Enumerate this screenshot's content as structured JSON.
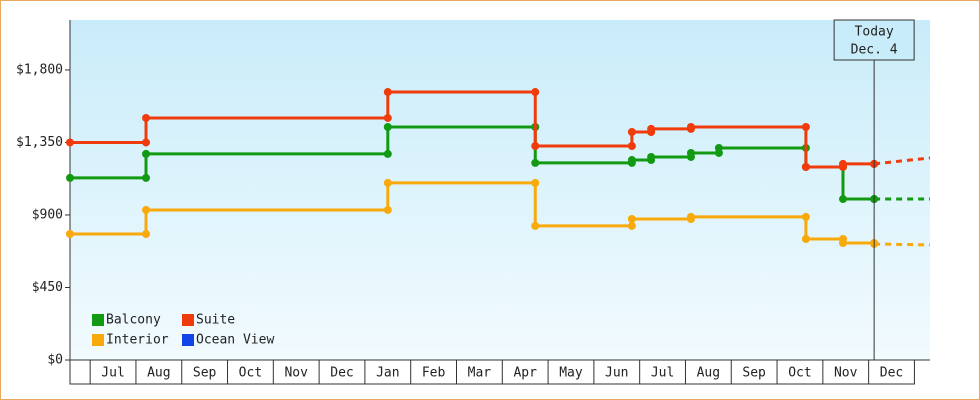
{
  "chart_data": {
    "type": "step-line",
    "categories": [
      "Jul",
      "Aug",
      "Sep",
      "Oct",
      "Nov",
      "Dec",
      "Jan",
      "Feb",
      "Mar",
      "Apr",
      "May",
      "Jun",
      "Jul",
      "Aug",
      "Sep",
      "Oct",
      "Nov",
      "Dec"
    ],
    "xlim": [
      -0.44,
      18.34
    ],
    "ylim": [
      0,
      2110
    ],
    "yticks": [
      {
        "value": 0,
        "label": "$0"
      },
      {
        "value": 450,
        "label": "$450"
      },
      {
        "value": 900,
        "label": "$900"
      },
      {
        "value": 1350,
        "label": "$1,350"
      },
      {
        "value": 1800,
        "label": "$1,800"
      }
    ],
    "annotation": {
      "lines": [
        "Today",
        "Dec. 4"
      ],
      "x": 17.12
    },
    "legend": "lower left",
    "series": [
      {
        "name": "Balcony",
        "color": "#129a12",
        "x": [
          -0.44,
          1.22,
          6.5,
          9.72,
          11.83,
          12.25,
          13.12,
          13.73,
          15.63,
          16.44,
          17.12,
          18.34
        ],
        "values": [
          1130,
          1279,
          1446,
          1223,
          1241,
          1260,
          1285,
          1316,
          1198,
          999,
          999,
          999
        ]
      },
      {
        "name": "Suite",
        "color": "#f03c0c",
        "x": [
          -0.44,
          1.22,
          6.5,
          9.72,
          11.83,
          12.25,
          13.12,
          15.63,
          16.44,
          17.12,
          18.34
        ],
        "values": [
          1350,
          1502,
          1663,
          1328,
          1415,
          1434,
          1446,
          1198,
          1217,
          1217,
          1254
        ]
      },
      {
        "name": "Interior",
        "color": "#f8a90c",
        "x": [
          -0.44,
          1.22,
          6.5,
          9.72,
          11.83,
          13.12,
          15.63,
          16.44,
          17.12,
          18.34
        ],
        "values": [
          782,
          931,
          1099,
          832,
          875,
          888,
          751,
          726,
          720,
          714
        ]
      },
      {
        "name": "Ocean View",
        "color": "#1245e8",
        "x": [],
        "values": []
      }
    ]
  }
}
